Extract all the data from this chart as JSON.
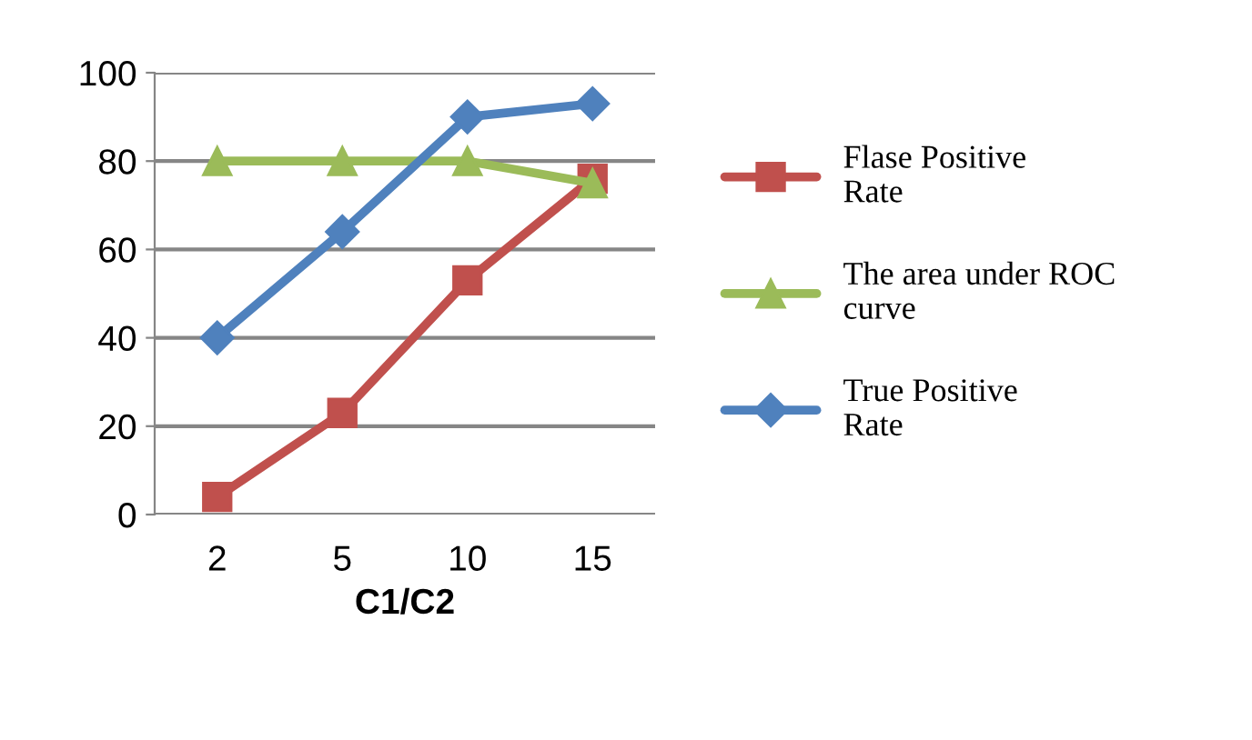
{
  "chart_data": {
    "type": "line",
    "xlabel": "C1/C2",
    "categories": [
      "2",
      "5",
      "10",
      "15"
    ],
    "series": [
      {
        "name": "Flase Positive Rate",
        "color": "#c0504d",
        "marker": "square",
        "values": [
          4,
          23,
          53,
          76
        ]
      },
      {
        "name": "The area under ROC curve",
        "color": "#9bbb59",
        "marker": "triangle",
        "values": [
          80,
          80,
          80,
          75
        ]
      },
      {
        "name": "True Positive Rate",
        "color": "#4f81bd",
        "marker": "diamond",
        "values": [
          40,
          64,
          90,
          93
        ]
      }
    ],
    "ylim": [
      0,
      100
    ],
    "yticks": [
      0,
      20,
      40,
      60,
      80,
      100
    ],
    "grid": "y",
    "legend": "right",
    "line_style": "solid"
  }
}
